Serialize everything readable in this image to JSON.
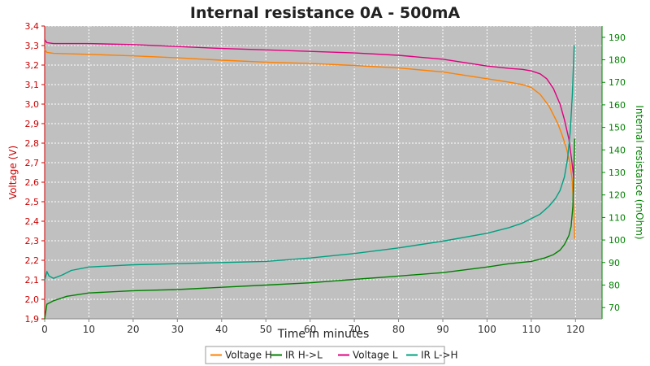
{
  "chart_data": {
    "type": "line",
    "title": "Internal resistance  0A - 500mA",
    "xlabel": "Time in minutes",
    "ylabel_left": "Voltage (V)",
    "ylabel_right": "Internal resistance (mOhm)",
    "xlim": [
      0,
      126
    ],
    "ylim_left": [
      1.9,
      3.4
    ],
    "ylim_right": [
      65,
      195
    ],
    "x_ticks": [
      0,
      10,
      20,
      30,
      40,
      50,
      60,
      70,
      80,
      90,
      100,
      110,
      120
    ],
    "y_ticks_left": [
      1.9,
      2.0,
      2.1,
      2.2,
      2.3,
      2.4,
      2.5,
      2.6,
      2.7,
      2.8,
      2.9,
      3.0,
      3.1,
      3.2,
      3.3,
      3.4
    ],
    "y_ticks_right": [
      70,
      80,
      90,
      100,
      110,
      120,
      130,
      140,
      150,
      160,
      170,
      180,
      190
    ],
    "grid": true,
    "background": "#c0c0c0",
    "legend_position": "bottom",
    "series": [
      {
        "name": "Voltage H",
        "axis": "left",
        "color": "#ff8000",
        "points": [
          [
            0,
            3.28
          ],
          [
            0.5,
            3.265
          ],
          [
            2,
            3.26
          ],
          [
            10,
            3.255
          ],
          [
            20,
            3.247
          ],
          [
            30,
            3.237
          ],
          [
            40,
            3.225
          ],
          [
            50,
            3.215
          ],
          [
            60,
            3.208
          ],
          [
            70,
            3.198
          ],
          [
            80,
            3.185
          ],
          [
            90,
            3.165
          ],
          [
            100,
            3.13
          ],
          [
            105,
            3.112
          ],
          [
            108,
            3.1
          ],
          [
            110,
            3.085
          ],
          [
            112,
            3.05
          ],
          [
            114,
            2.99
          ],
          [
            116,
            2.9
          ],
          [
            117,
            2.84
          ],
          [
            118,
            2.77
          ],
          [
            118.7,
            2.7
          ],
          [
            119.2,
            2.62
          ],
          [
            119.6,
            2.47
          ],
          [
            119.8,
            2.31
          ]
        ]
      },
      {
        "name": "IR H->L",
        "axis": "right",
        "color": "#008000",
        "points": [
          [
            0,
            65
          ],
          [
            0.5,
            71.5
          ],
          [
            2,
            73
          ],
          [
            5,
            75
          ],
          [
            10,
            76.5
          ],
          [
            20,
            77.5
          ],
          [
            30,
            78
          ],
          [
            40,
            79
          ],
          [
            50,
            80
          ],
          [
            60,
            81
          ],
          [
            70,
            82.5
          ],
          [
            80,
            84
          ],
          [
            90,
            85.5
          ],
          [
            100,
            88
          ],
          [
            105,
            89.5
          ],
          [
            110,
            90.5
          ],
          [
            113,
            92
          ],
          [
            115,
            93.5
          ],
          [
            116.5,
            95.5
          ],
          [
            117.5,
            98
          ],
          [
            118.5,
            102
          ],
          [
            119,
            106
          ],
          [
            119.4,
            115
          ],
          [
            119.6,
            130
          ],
          [
            119.8,
            145
          ]
        ]
      },
      {
        "name": "Voltage L",
        "axis": "left",
        "color": "#e0007f",
        "points": [
          [
            0,
            3.33
          ],
          [
            0.5,
            3.315
          ],
          [
            2,
            3.31
          ],
          [
            10,
            3.31
          ],
          [
            20,
            3.305
          ],
          [
            30,
            3.295
          ],
          [
            40,
            3.285
          ],
          [
            50,
            3.278
          ],
          [
            60,
            3.27
          ],
          [
            70,
            3.262
          ],
          [
            80,
            3.25
          ],
          [
            90,
            3.23
          ],
          [
            100,
            3.195
          ],
          [
            105,
            3.183
          ],
          [
            108,
            3.178
          ],
          [
            110,
            3.17
          ],
          [
            112,
            3.155
          ],
          [
            113.5,
            3.13
          ],
          [
            115,
            3.08
          ],
          [
            116.5,
            3.0
          ],
          [
            117.5,
            2.92
          ],
          [
            118.5,
            2.82
          ],
          [
            119.2,
            2.7
          ],
          [
            119.6,
            2.62
          ]
        ]
      },
      {
        "name": "IR L->H",
        "axis": "right",
        "color": "#00a080",
        "points": [
          [
            0,
            82
          ],
          [
            0.5,
            86
          ],
          [
            1,
            84
          ],
          [
            2,
            83
          ],
          [
            4,
            84.5
          ],
          [
            6,
            86.5
          ],
          [
            10,
            88
          ],
          [
            20,
            89
          ],
          [
            30,
            89.5
          ],
          [
            40,
            90
          ],
          [
            50,
            90.5
          ],
          [
            60,
            92
          ],
          [
            70,
            94
          ],
          [
            80,
            96.5
          ],
          [
            90,
            99.5
          ],
          [
            100,
            103
          ],
          [
            105,
            105.5
          ],
          [
            108,
            107.5
          ],
          [
            110,
            109.5
          ],
          [
            112,
            111.5
          ],
          [
            114,
            115
          ],
          [
            115.5,
            118.5
          ],
          [
            116.5,
            122
          ],
          [
            117.5,
            128
          ],
          [
            118.2,
            136
          ],
          [
            118.8,
            148
          ],
          [
            119.3,
            165
          ],
          [
            119.7,
            186.5
          ]
        ]
      }
    ]
  }
}
